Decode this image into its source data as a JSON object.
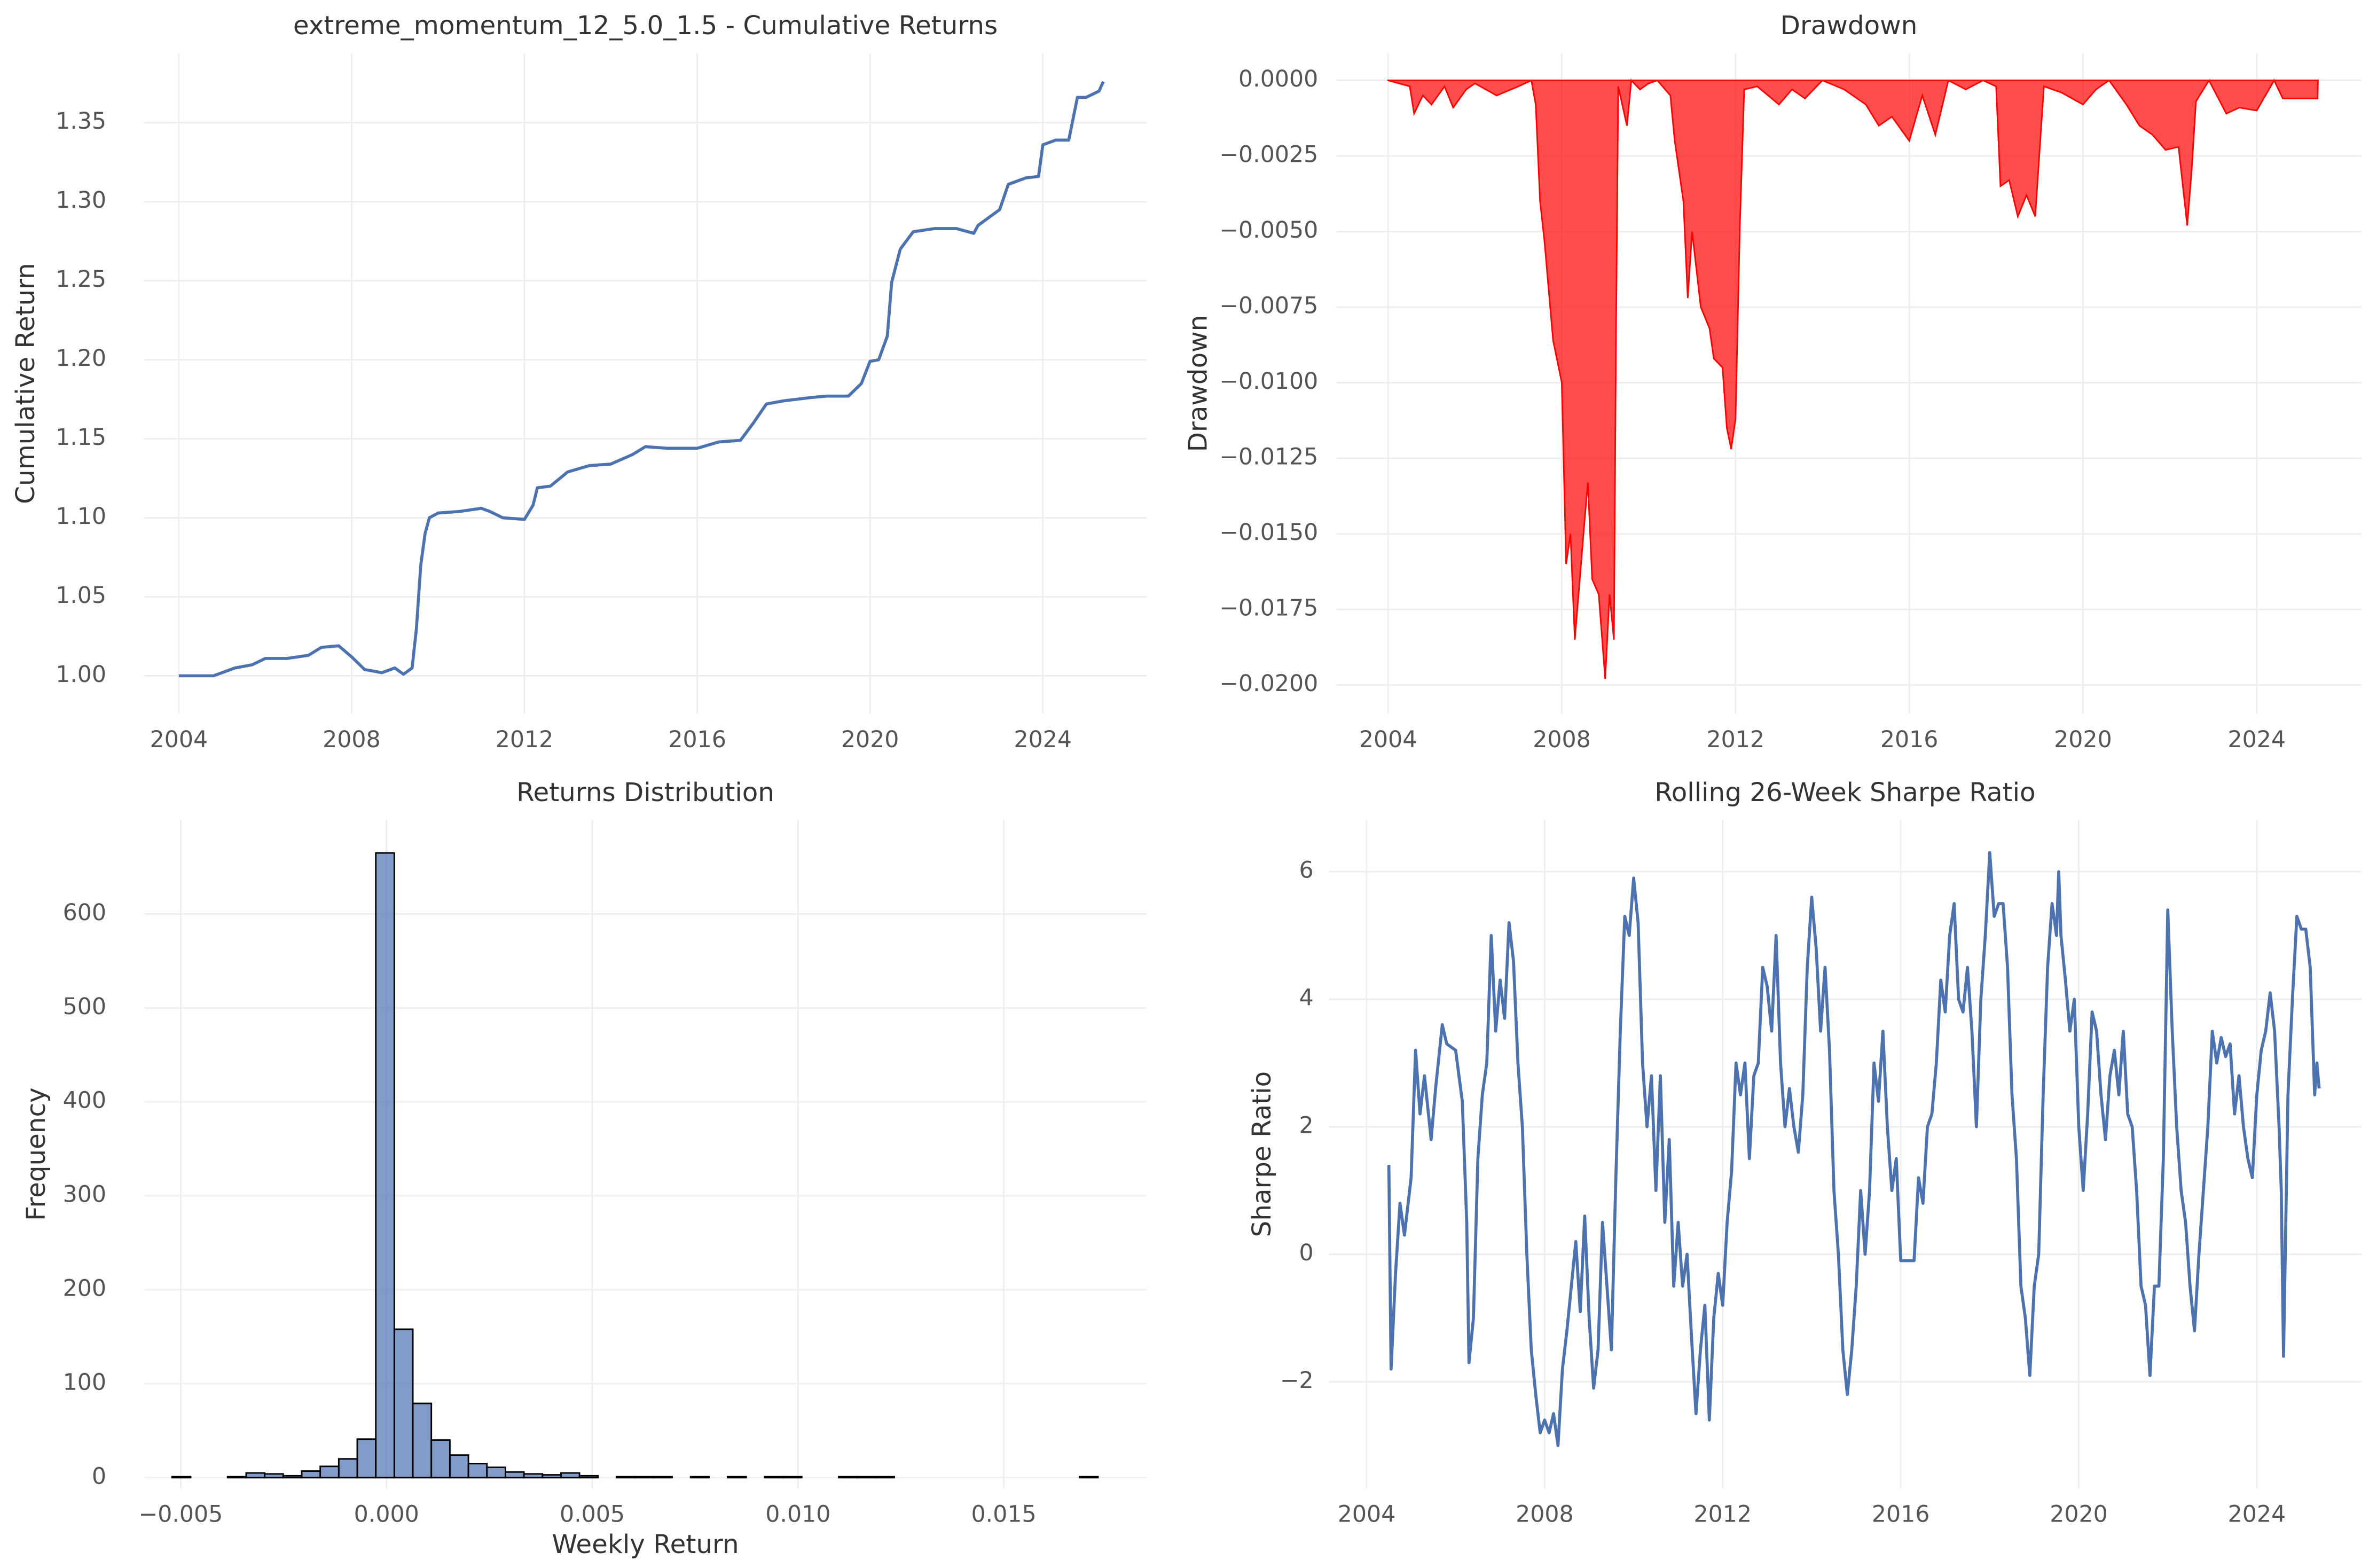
{
  "chart_data": [
    {
      "type": "line",
      "title": "extreme_momentum_12_5.0_1.5 - Cumulative Returns",
      "y_label": "Cumulative Return",
      "color": "#4c72b0",
      "x": [
        2004.0,
        2004.8,
        2005.0,
        2005.3,
        2005.7,
        2006.0,
        2006.5,
        2007.0,
        2007.3,
        2007.7,
        2008.0,
        2008.3,
        2008.7,
        2009.0,
        2009.2,
        2009.4,
        2009.5,
        2009.6,
        2009.7,
        2009.8,
        2010.0,
        2010.5,
        2011.0,
        2011.2,
        2011.5,
        2012.0,
        2012.2,
        2012.3,
        2012.6,
        2013.0,
        2013.5,
        2014.0,
        2014.5,
        2014.8,
        2015.3,
        2016.0,
        2016.5,
        2017.0,
        2017.3,
        2017.6,
        2018.0,
        2018.6,
        2019.0,
        2019.5,
        2019.8,
        2020.0,
        2020.2,
        2020.4,
        2020.5,
        2020.7,
        2021.0,
        2021.5,
        2022.0,
        2022.4,
        2022.5,
        2023.0,
        2023.2,
        2023.6,
        2023.9,
        2024.0,
        2024.3,
        2024.6,
        2024.8,
        2025.0,
        2025.3,
        2025.4
      ],
      "values": [
        1.0,
        1.0,
        1.002,
        1.005,
        1.007,
        1.011,
        1.011,
        1.013,
        1.018,
        1.019,
        1.012,
        1.004,
        1.002,
        1.005,
        1.001,
        1.005,
        1.03,
        1.07,
        1.09,
        1.1,
        1.103,
        1.104,
        1.106,
        1.104,
        1.1,
        1.099,
        1.108,
        1.119,
        1.12,
        1.129,
        1.133,
        1.134,
        1.14,
        1.145,
        1.144,
        1.144,
        1.148,
        1.149,
        1.16,
        1.172,
        1.174,
        1.176,
        1.177,
        1.177,
        1.185,
        1.199,
        1.2,
        1.215,
        1.249,
        1.27,
        1.281,
        1.283,
        1.283,
        1.28,
        1.285,
        1.295,
        1.311,
        1.315,
        1.316,
        1.336,
        1.339,
        1.339,
        1.366,
        1.366,
        1.37,
        1.376
      ],
      "xlim": [
        2003.2,
        2026.4
      ],
      "ylim": [
        0.976,
        1.394
      ],
      "xticks": [
        2004,
        2008,
        2012,
        2016,
        2020,
        2024
      ],
      "yticks": [
        {
          "value": 1,
          "label": "1.00"
        },
        1.05,
        {
          "value": 1.1,
          "label": "1.10"
        },
        1.15,
        {
          "value": 1.2,
          "label": "1.20"
        },
        1.25,
        {
          "value": 1.3,
          "label": "1.30"
        },
        1.35
      ],
      "grid": true
    },
    {
      "type": "area",
      "title": "Drawdown",
      "y_label": "Drawdown",
      "color": "#ff0000",
      "x": [
        2004.0,
        2004.5,
        2004.6,
        2004.8,
        2005.0,
        2005.3,
        2005.5,
        2005.8,
        2006.0,
        2006.5,
        2007.0,
        2007.3,
        2007.4,
        2007.5,
        2007.6,
        2007.8,
        2008.0,
        2008.1,
        2008.2,
        2008.3,
        2008.5,
        2008.6,
        2008.7,
        2008.85,
        2009.0,
        2009.1,
        2009.2,
        2009.25,
        2009.3,
        2009.5,
        2009.6,
        2009.8,
        2010.0,
        2010.2,
        2010.5,
        2010.6,
        2010.8,
        2010.9,
        2011.0,
        2011.2,
        2011.4,
        2011.5,
        2011.7,
        2011.8,
        2011.9,
        2012.0,
        2012.1,
        2012.2,
        2012.5,
        2013.0,
        2013.3,
        2013.6,
        2014.0,
        2014.5,
        2015.0,
        2015.3,
        2015.6,
        2016.0,
        2016.3,
        2016.6,
        2016.9,
        2017.3,
        2017.7,
        2018.0,
        2018.1,
        2018.3,
        2018.5,
        2018.7,
        2018.9,
        2019.1,
        2019.5,
        2020.0,
        2020.3,
        2020.6,
        2021.0,
        2021.3,
        2021.6,
        2021.9,
        2022.2,
        2022.4,
        2022.5,
        2022.6,
        2022.9,
        2023.3,
        2023.6,
        2024.0,
        2024.4,
        2024.6,
        2025.0,
        2025.4,
        2025.41
      ],
      "values": [
        0,
        -0.0002,
        -0.0011,
        -0.0005,
        -0.0008,
        -0.0002,
        -0.0009,
        -0.0003,
        -0.0001,
        -0.0005,
        -0.0002,
        0,
        -0.0008,
        -0.004,
        -0.0053,
        -0.0086,
        -0.01,
        -0.016,
        -0.015,
        -0.0185,
        -0.015,
        -0.0133,
        -0.0165,
        -0.017,
        -0.0198,
        -0.017,
        -0.0185,
        -0.0082,
        -0.0002,
        -0.0015,
        0,
        -0.0003,
        -0.0001,
        0,
        -0.0005,
        -0.002,
        -0.004,
        -0.0072,
        -0.005,
        -0.0075,
        -0.0082,
        -0.0092,
        -0.0095,
        -0.0115,
        -0.0122,
        -0.0112,
        -0.0048,
        -0.0003,
        -0.0002,
        -0.0008,
        -0.0003,
        -0.0006,
        0,
        -0.0003,
        -0.0008,
        -0.0015,
        -0.0012,
        -0.002,
        -0.0005,
        -0.0018,
        0,
        -0.0003,
        0,
        -0.0002,
        -0.0035,
        -0.0033,
        -0.0045,
        -0.0038,
        -0.0045,
        -0.0002,
        -0.0004,
        -0.0008,
        -0.0003,
        0,
        -0.0008,
        -0.0015,
        -0.0018,
        -0.0023,
        -0.0022,
        -0.0048,
        -0.003,
        -0.0007,
        0,
        -0.0011,
        -0.0009,
        -0.001,
        0,
        -0.0006,
        -0.0006,
        -0.0006,
        0
      ],
      "xlim": [
        2002.81,
        2026.41
      ],
      "ylim": [
        -0.02095,
        0.0009
      ],
      "xticks": [
        2004,
        2008,
        2012,
        2016,
        2020,
        2024
      ],
      "yticks": [
        {
          "value": 0,
          "label": "0.0000"
        },
        {
          "value": -0.0025,
          "label": "−0.0025"
        },
        {
          "value": -0.005,
          "label": "−0.0050"
        },
        {
          "value": -0.0075,
          "label": "−0.0075"
        },
        {
          "value": -0.01,
          "label": "−0.0100"
        },
        {
          "value": -0.0125,
          "label": "−0.0125"
        },
        {
          "value": -0.015,
          "label": "−0.0150"
        },
        {
          "value": -0.0175,
          "label": "−0.0175"
        },
        {
          "value": -0.02,
          "label": "−0.0200"
        }
      ],
      "grid": true
    },
    {
      "type": "histogram",
      "title": "Returns Distribution",
      "x_label": "Weekly Return",
      "y_label": "Frequency",
      "color": "#4c72b0",
      "bins": [
        -0.00521,
        -0.00476,
        -0.00431,
        -0.00386,
        -0.00341,
        -0.00296,
        -0.00251,
        -0.00206,
        -0.00161,
        -0.00116,
        -0.00071,
        -0.00026,
        0.00019,
        0.00064,
        0.00109,
        0.00154,
        0.00199,
        0.00244,
        0.00289,
        0.00334,
        0.00379,
        0.00424,
        0.00469,
        0.00514,
        0.00559,
        0.00604,
        0.00649,
        0.00694,
        0.00739,
        0.00784,
        0.00829,
        0.00874,
        0.00919,
        0.00964,
        0.01009,
        0.01054,
        0.01099,
        0.01144,
        0.01189,
        0.01234,
        0.01279,
        0.01324,
        0.01369,
        0.01414,
        0.01459,
        0.01504,
        0.01549,
        0.01594,
        0.01639,
        0.01684,
        0.01729
      ],
      "values": [
        1,
        0,
        0,
        1,
        5,
        4,
        2,
        7,
        12,
        20,
        41,
        665,
        158,
        79,
        40,
        24,
        15,
        11,
        6,
        4,
        3,
        5,
        2,
        0,
        1,
        1,
        1,
        0,
        1,
        0,
        1,
        0,
        1,
        1,
        0,
        0,
        1,
        1,
        1,
        0,
        0,
        0,
        0,
        0,
        0,
        0,
        0,
        0,
        0,
        1
      ],
      "xlim": [
        -0.005886,
        0.018469
      ],
      "ylim": [
        -11.3,
        700
      ],
      "xticks": [
        {
          "value": -0.005,
          "label": "−0.005"
        },
        {
          "value": 0,
          "label": "0.000"
        },
        0.005,
        {
          "value": 0.01,
          "label": "0.010"
        },
        0.015
      ],
      "yticks": [
        0,
        100,
        200,
        300,
        400,
        500,
        600
      ],
      "grid": true
    },
    {
      "type": "line",
      "title": "Rolling 26-Week Sharpe Ratio",
      "y_label": "Sharpe Ratio",
      "color": "#4c72b0",
      "x": [
        2004.5,
        2004.55,
        2004.65,
        2004.75,
        2004.85,
        2005.0,
        2005.1,
        2005.2,
        2005.3,
        2005.45,
        2005.55,
        2005.7,
        2005.8,
        2006.0,
        2006.15,
        2006.25,
        2006.3,
        2006.4,
        2006.5,
        2006.6,
        2006.7,
        2006.8,
        2006.9,
        2007.0,
        2007.1,
        2007.2,
        2007.3,
        2007.4,
        2007.5,
        2007.6,
        2007.7,
        2007.8,
        2007.9,
        2008.0,
        2008.1,
        2008.2,
        2008.3,
        2008.4,
        2008.5,
        2008.6,
        2008.7,
        2008.8,
        2008.9,
        2009.0,
        2009.1,
        2009.2,
        2009.3,
        2009.4,
        2009.5,
        2009.6,
        2009.7,
        2009.8,
        2009.9,
        2010.0,
        2010.1,
        2010.2,
        2010.3,
        2010.4,
        2010.5,
        2010.6,
        2010.7,
        2010.8,
        2010.9,
        2011.0,
        2011.1,
        2011.2,
        2011.3,
        2011.4,
        2011.5,
        2011.6,
        2011.7,
        2011.8,
        2011.9,
        2012.0,
        2012.1,
        2012.2,
        2012.3,
        2012.4,
        2012.5,
        2012.6,
        2012.7,
        2012.8,
        2012.9,
        2013.0,
        2013.1,
        2013.2,
        2013.3,
        2013.4,
        2013.5,
        2013.6,
        2013.7,
        2013.8,
        2013.9,
        2014.0,
        2014.1,
        2014.2,
        2014.3,
        2014.4,
        2014.5,
        2014.6,
        2014.7,
        2014.8,
        2014.9,
        2015.0,
        2015.1,
        2015.2,
        2015.3,
        2015.4,
        2015.5,
        2015.6,
        2015.7,
        2015.8,
        2015.9,
        2016.0,
        2016.1,
        2016.3,
        2016.4,
        2016.5,
        2016.6,
        2016.7,
        2016.8,
        2016.9,
        2017.0,
        2017.1,
        2017.2,
        2017.3,
        2017.4,
        2017.5,
        2017.6,
        2017.7,
        2017.8,
        2017.9,
        2018.0,
        2018.1,
        2018.2,
        2018.3,
        2018.4,
        2018.5,
        2018.6,
        2018.7,
        2018.8,
        2018.9,
        2019.0,
        2019.1,
        2019.2,
        2019.3,
        2019.4,
        2019.5,
        2019.55,
        2019.6,
        2019.7,
        2019.8,
        2019.9,
        2020.0,
        2020.1,
        2020.2,
        2020.3,
        2020.4,
        2020.5,
        2020.6,
        2020.7,
        2020.8,
        2020.9,
        2021.0,
        2021.1,
        2021.2,
        2021.3,
        2021.4,
        2021.5,
        2021.6,
        2021.7,
        2021.8,
        2021.9,
        2022.0,
        2022.1,
        2022.2,
        2022.3,
        2022.4,
        2022.5,
        2022.6,
        2022.7,
        2022.8,
        2022.9,
        2023.0,
        2023.1,
        2023.2,
        2023.3,
        2023.4,
        2023.5,
        2023.6,
        2023.7,
        2023.8,
        2023.9,
        2024.0,
        2024.1,
        2024.2,
        2024.3,
        2024.4,
        2024.5,
        2024.55,
        2024.6,
        2024.7,
        2024.8,
        2024.9,
        2025.0,
        2025.1,
        2025.2,
        2025.3,
        2025.35,
        2025.4
      ],
      "values": [
        1.4,
        -1.8,
        -0.3,
        0.8,
        0.3,
        1.2,
        3.2,
        2.2,
        2.8,
        1.8,
        2.6,
        3.6,
        3.3,
        3.2,
        2.4,
        0.5,
        -1.7,
        -1.0,
        1.5,
        2.5,
        3.0,
        5.0,
        3.5,
        4.3,
        3.7,
        5.2,
        4.6,
        3.0,
        2.0,
        0.0,
        -1.5,
        -2.2,
        -2.8,
        -2.6,
        -2.8,
        -2.5,
        -3.0,
        -1.8,
        -1.2,
        -0.5,
        0.2,
        -0.9,
        0.6,
        -1.0,
        -2.1,
        -1.5,
        0.5,
        -0.5,
        -1.5,
        1.2,
        3.5,
        5.3,
        5.0,
        5.9,
        5.2,
        3.0,
        2.0,
        2.8,
        1.0,
        2.8,
        0.5,
        1.8,
        -0.5,
        0.5,
        -0.5,
        0.0,
        -1.3,
        -2.5,
        -1.5,
        -0.8,
        -2.6,
        -1.0,
        -0.3,
        -0.8,
        0.5,
        1.3,
        3.0,
        2.5,
        3.0,
        1.5,
        2.8,
        3.0,
        4.5,
        4.2,
        3.5,
        5.0,
        3.0,
        2.0,
        2.6,
        2.0,
        1.6,
        2.5,
        4.5,
        5.6,
        4.8,
        3.5,
        4.5,
        3.2,
        1.0,
        0.0,
        -1.5,
        -2.2,
        -1.5,
        -0.5,
        1.0,
        0.0,
        1.0,
        3.0,
        2.4,
        3.5,
        2.0,
        1.0,
        1.5,
        -0.1,
        -0.1,
        -0.1,
        1.2,
        0.8,
        2.0,
        2.2,
        3.0,
        4.3,
        3.8,
        5.0,
        5.5,
        4.0,
        3.8,
        4.5,
        3.5,
        2.0,
        4.0,
        5.0,
        6.3,
        5.3,
        5.5,
        5.5,
        4.5,
        2.5,
        1.5,
        -0.5,
        -1.0,
        -1.9,
        -0.5,
        0.0,
        2.5,
        4.5,
        5.5,
        5.0,
        6.0,
        5.0,
        4.3,
        3.5,
        4.0,
        2.0,
        1.0,
        2.2,
        3.8,
        3.5,
        2.5,
        1.8,
        2.8,
        3.2,
        2.5,
        3.5,
        2.2,
        2.0,
        1.0,
        -0.5,
        -0.8,
        -1.9,
        -0.5,
        -0.5,
        1.5,
        5.4,
        3.5,
        2.0,
        1.0,
        0.5,
        -0.5,
        -1.2,
        0.0,
        1.0,
        2.0,
        3.5,
        3.0,
        3.4,
        3.1,
        3.3,
        2.2,
        2.8,
        2.0,
        1.5,
        1.2,
        2.5,
        3.2,
        3.5,
        4.1,
        3.5,
        2.0,
        1.0,
        -1.6,
        2.5,
        4.0,
        5.3,
        5.1,
        5.1,
        4.5,
        2.5,
        3.0,
        2.6
      ],
      "xlim": [
        2003.15,
        2026.35
      ],
      "ylim": [
        -3.67,
        6.81
      ],
      "xticks": [
        2004,
        2008,
        2012,
        2016,
        2020,
        2024
      ],
      "yticks": [
        {
          "value": -2,
          "label": "−2"
        },
        0,
        2,
        4,
        6
      ],
      "grid": true
    }
  ]
}
